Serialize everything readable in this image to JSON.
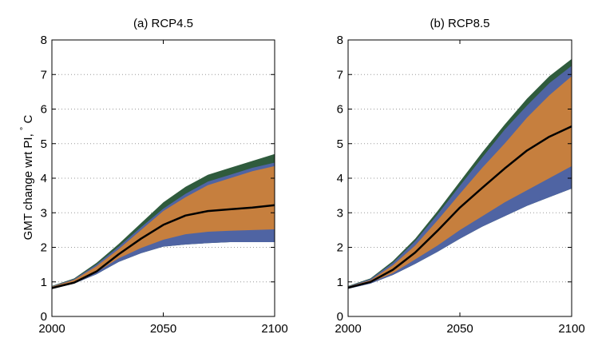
{
  "figure": {
    "ylabel": "GMT change wrt PI,",
    "ylabel_unit": "°C"
  },
  "colors": {
    "green": "#2f5b3d",
    "blue": "#4f64a3",
    "orange": "#c67f3e",
    "median": "#000000",
    "grid": "#999999"
  },
  "chart_data": [
    {
      "type": "area",
      "title": "(a) RCP4.5",
      "xlim": [
        2000,
        2100
      ],
      "ylim": [
        0,
        8
      ],
      "xticks": [
        2000,
        2050,
        2100
      ],
      "yticks": [
        0,
        1,
        2,
        3,
        4,
        5,
        6,
        7,
        8
      ],
      "grid": "horizontal dotted",
      "x": [
        2000,
        2010,
        2020,
        2030,
        2040,
        2050,
        2060,
        2070,
        2080,
        2090,
        2100
      ],
      "bands": [
        {
          "color": "green",
          "lower": [
            0.8,
            0.95,
            1.22,
            1.58,
            1.83,
            2.02,
            2.08,
            2.12,
            2.15,
            2.15,
            2.15
          ],
          "upper": [
            0.88,
            1.1,
            1.55,
            2.1,
            2.7,
            3.3,
            3.75,
            4.1,
            4.3,
            4.5,
            4.7
          ]
        },
        {
          "color": "blue",
          "lower": [
            0.8,
            0.95,
            1.22,
            1.58,
            1.83,
            2.02,
            2.08,
            2.12,
            2.15,
            2.15,
            2.15
          ],
          "upper": [
            0.87,
            1.08,
            1.5,
            2.02,
            2.58,
            3.12,
            3.55,
            3.9,
            4.1,
            4.3,
            4.45
          ]
        },
        {
          "color": "orange",
          "lower": [
            0.82,
            0.97,
            1.28,
            1.68,
            1.98,
            2.22,
            2.38,
            2.45,
            2.48,
            2.5,
            2.52
          ],
          "upper": [
            0.86,
            1.06,
            1.45,
            1.95,
            2.5,
            3.05,
            3.45,
            3.8,
            4.0,
            4.2,
            4.35
          ]
        }
      ],
      "median": [
        0.82,
        0.98,
        1.3,
        1.8,
        2.25,
        2.65,
        2.92,
        3.05,
        3.1,
        3.15,
        3.22
      ]
    },
    {
      "type": "area",
      "title": "(b) RCP8.5",
      "xlim": [
        2000,
        2100
      ],
      "ylim": [
        0,
        8
      ],
      "xticks": [
        2000,
        2050,
        2100
      ],
      "yticks": [
        0,
        1,
        2,
        3,
        4,
        5,
        6,
        7,
        8
      ],
      "grid": "horizontal dotted",
      "x": [
        2000,
        2010,
        2020,
        2030,
        2040,
        2050,
        2060,
        2070,
        2080,
        2090,
        2100
      ],
      "bands": [
        {
          "color": "green",
          "lower": [
            0.8,
            0.95,
            1.2,
            1.52,
            1.87,
            2.25,
            2.6,
            2.9,
            3.2,
            3.45,
            3.7
          ],
          "upper": [
            0.88,
            1.1,
            1.6,
            2.25,
            3.05,
            3.9,
            4.75,
            5.55,
            6.3,
            6.95,
            7.45
          ]
        },
        {
          "color": "blue",
          "lower": [
            0.8,
            0.95,
            1.2,
            1.52,
            1.87,
            2.25,
            2.6,
            2.9,
            3.2,
            3.45,
            3.7
          ],
          "upper": [
            0.87,
            1.08,
            1.55,
            2.18,
            2.95,
            3.78,
            4.6,
            5.4,
            6.1,
            6.75,
            7.25
          ]
        },
        {
          "color": "orange",
          "lower": [
            0.82,
            0.98,
            1.25,
            1.65,
            2.05,
            2.5,
            2.9,
            3.3,
            3.65,
            4.0,
            4.35
          ],
          "upper": [
            0.86,
            1.05,
            1.48,
            2.05,
            2.78,
            3.55,
            4.3,
            5.0,
            5.75,
            6.4,
            6.95
          ]
        }
      ],
      "median": [
        0.83,
        1.0,
        1.35,
        1.85,
        2.48,
        3.15,
        3.72,
        4.28,
        4.8,
        5.2,
        5.5
      ]
    }
  ]
}
